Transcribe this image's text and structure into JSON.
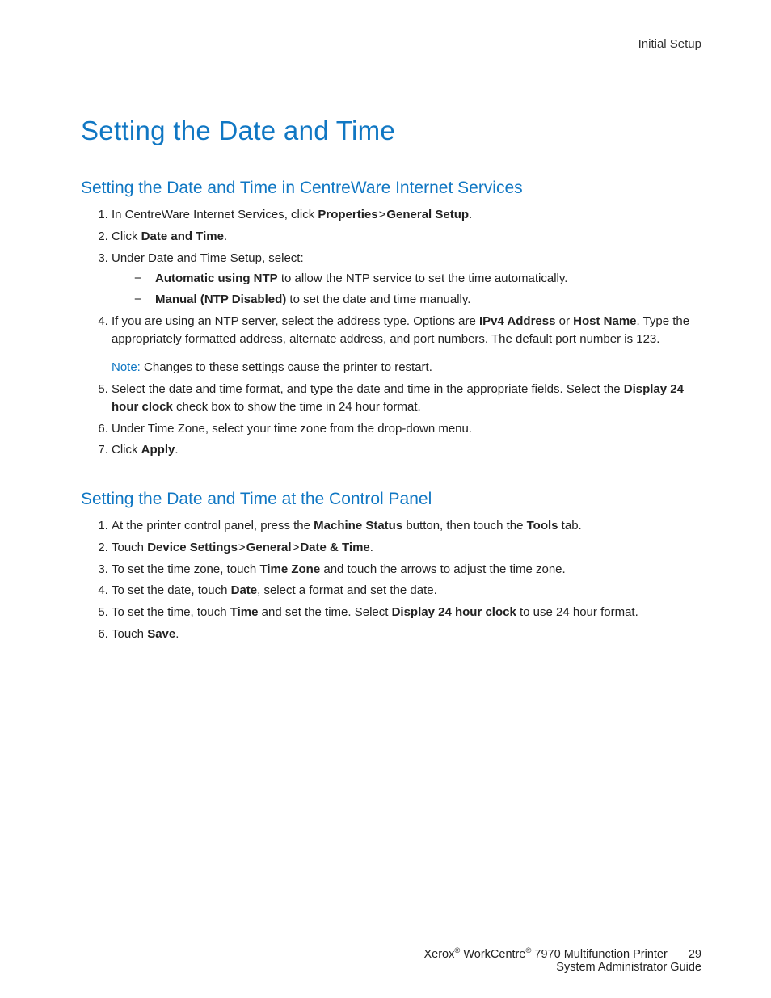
{
  "header": {
    "text": "Initial Setup"
  },
  "title": "Setting the Date and Time",
  "sections": [
    {
      "heading": "Setting the Date and Time in CentreWare Internet Services",
      "items": [
        {
          "html": "In CentreWare Internet Services, click <span class=\"bold\">Properties</span><span class=\"gt\">></span><span class=\"bold\">General Setup</span>."
        },
        {
          "html": "Click <span class=\"bold\">Date and Time</span>."
        },
        {
          "html": "Under Date and Time Setup, select:",
          "sub": [
            {
              "html": "<span class=\"bold\">Automatic using NTP</span> to allow the NTP service to set the time automatically."
            },
            {
              "html": "<span class=\"bold\">Manual (NTP Disabled)</span> to set the date and time manually."
            }
          ]
        },
        {
          "html": "If you are using an NTP server, select the address type. Options are <span class=\"bold\">IPv4 Address</span> or <span class=\"bold\">Host Name</span>. Type the appropriately formatted address, alternate address, and port numbers. The default port number is 123.",
          "note": "Changes to these settings cause the printer to restart."
        },
        {
          "html": "Select the date and time format, and type the date and time in the appropriate fields. Select the <span class=\"bold\">Display 24 hour clock</span> check box to show the time in 24 hour format."
        },
        {
          "html": "Under Time Zone, select your time zone from the drop-down menu."
        },
        {
          "html": "Click <span class=\"bold\">Apply</span>."
        }
      ]
    },
    {
      "heading": "Setting the Date and Time at the Control Panel",
      "items": [
        {
          "html": "At the printer control panel, press the <span class=\"bold\">Machine Status</span> button, then touch the <span class=\"bold\">Tools</span> tab."
        },
        {
          "html": "Touch <span class=\"bold\">Device Settings</span><span class=\"gt\">></span><span class=\"bold\">General</span><span class=\"gt\">></span><span class=\"bold\">Date &amp; Time</span>."
        },
        {
          "html": "To set the time zone, touch <span class=\"bold\">Time Zone</span> and touch the arrows to adjust the time zone."
        },
        {
          "html": "To set the date, touch <span class=\"bold\">Date</span>, select a format and set the date."
        },
        {
          "html": "To set the time, touch <span class=\"bold\">Time</span> and set the time. Select <span class=\"bold\">Display 24 hour clock</span> to use 24 hour format."
        },
        {
          "html": "Touch <span class=\"bold\">Save</span>."
        }
      ]
    }
  ],
  "note_label": "Note:",
  "footer": {
    "brand1": "Xerox",
    "reg": "®",
    "brand2": "WorkCentre",
    "model_rest": "7970 Multifunction Printer",
    "line2": "System Administrator Guide",
    "page": "29"
  },
  "colors": {
    "accent": "#1077c3",
    "text": "#222222",
    "background": "#ffffff"
  }
}
